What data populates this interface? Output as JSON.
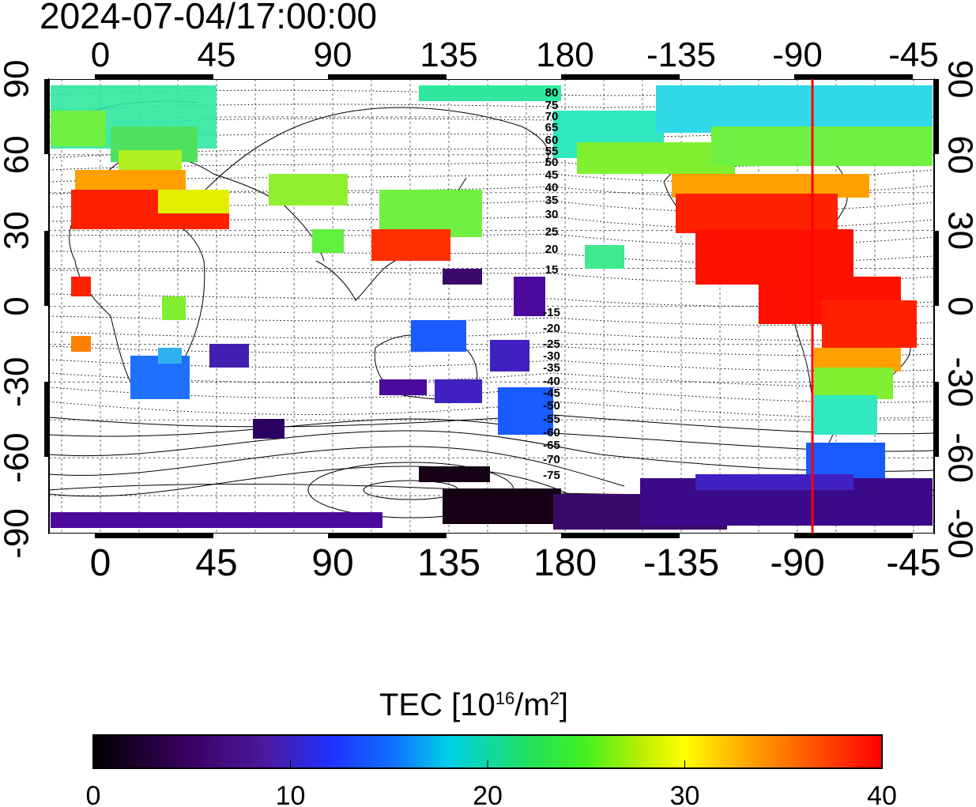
{
  "timestamp": "2024-07-04/17:00:00",
  "lon_ticks_top": [
    "0",
    "45",
    "90",
    "135",
    "180",
    "-135",
    "-90",
    "-45"
  ],
  "lon_ticks_bottom": [
    "0",
    "45",
    "90",
    "135",
    "180",
    "-135",
    "-90",
    "-45"
  ],
  "lat_ticks_left": [
    "90",
    "60",
    "30",
    "0",
    "-30",
    "-60",
    "-90"
  ],
  "lat_ticks_right": [
    "90",
    "60",
    "30",
    "0",
    "-30",
    "-60",
    "-90"
  ],
  "magnetic_contour_labels": [
    "80",
    "75",
    "70",
    "65",
    "60",
    "55",
    "50",
    "45",
    "40",
    "35",
    "30",
    "25",
    "20",
    "15",
    "-15",
    "-20",
    "-25",
    "-30",
    "-35",
    "-40",
    "-45",
    "-50",
    "-55",
    "-60",
    "-65",
    "-70",
    "-75"
  ],
  "colorbar": {
    "title_main": "TEC  [10",
    "title_sup1": "16",
    "title_mid": "/m",
    "title_sup2": "2",
    "title_end": "]",
    "min_label": "0",
    "tick_labels": [
      "0",
      "10",
      "20",
      "30",
      "40"
    ],
    "range": [
      0,
      40
    ]
  },
  "marker_line": {
    "longitude": -78,
    "color": "#ff0000"
  },
  "map": {
    "lon_range": [
      -20,
      330
    ],
    "lat_range": [
      -90,
      90
    ],
    "grid": "dotted every 15°",
    "data_colors": {
      "low": "#1a001a",
      "violet": "#4b0a9c",
      "blue": "#1a3bff",
      "cyan": "#00e0e0",
      "green": "#30e030",
      "yellow": "#f0f000",
      "orange": "#ff8000",
      "red": "#ff1000"
    }
  }
}
